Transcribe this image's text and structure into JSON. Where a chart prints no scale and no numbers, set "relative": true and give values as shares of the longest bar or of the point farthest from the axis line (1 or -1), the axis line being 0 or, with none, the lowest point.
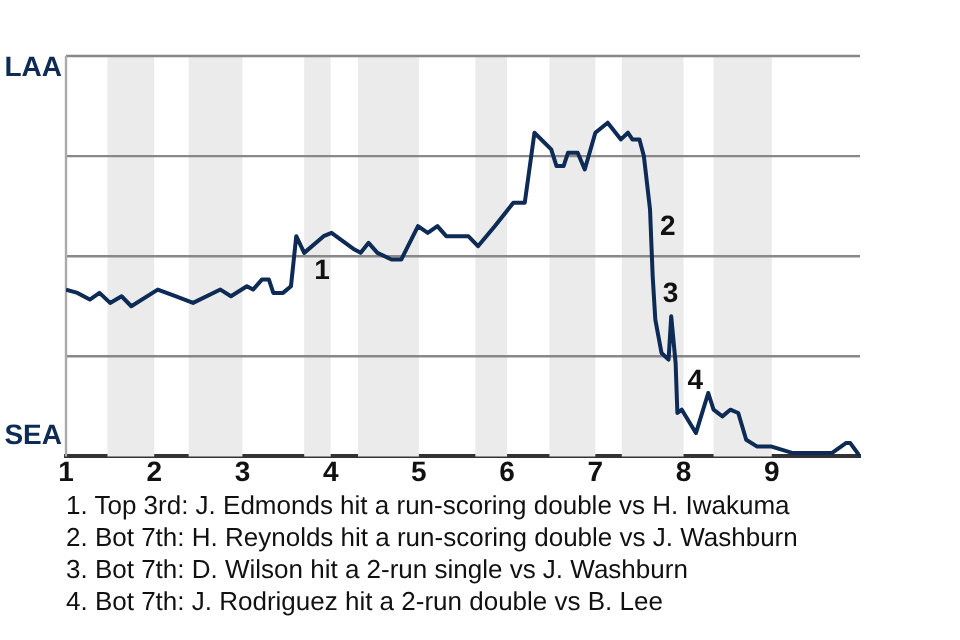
{
  "chart_data": {
    "type": "line",
    "color": "#0d2b55",
    "marker": "none",
    "grid": "y",
    "legend": false,
    "relative": true,
    "x": [
      1.0,
      1.13,
      1.27,
      1.38,
      1.5,
      1.63,
      1.74,
      2.04,
      2.24,
      2.44,
      2.75,
      2.87,
      3.05,
      3.12,
      3.22,
      3.3,
      3.35,
      3.46,
      3.55,
      3.61,
      3.7,
      3.92,
      4.01,
      4.27,
      4.34,
      4.43,
      4.53,
      4.69,
      4.8,
      4.99,
      5.1,
      5.21,
      5.31,
      5.56,
      5.67,
      5.86,
      6.07,
      6.2,
      6.31,
      6.5,
      6.56,
      6.64,
      6.69,
      6.8,
      6.88,
      7.0,
      7.14,
      7.29,
      7.37,
      7.42,
      7.5,
      7.55,
      7.62,
      7.65,
      7.68,
      7.75,
      7.83,
      7.86,
      7.91,
      7.93,
      7.98,
      8.14,
      8.28,
      8.34,
      8.44,
      8.53,
      8.62,
      8.71,
      8.83,
      8.99,
      9.24,
      9.36,
      9.68,
      9.84,
      9.89,
      10.0
    ],
    "values": [
      0.5,
      0.49,
      0.47,
      0.49,
      0.46,
      0.48,
      0.45,
      0.5,
      0.48,
      0.46,
      0.5,
      0.48,
      0.51,
      0.5,
      0.53,
      0.53,
      0.49,
      0.49,
      0.51,
      0.66,
      0.61,
      0.66,
      0.67,
      0.62,
      0.61,
      0.64,
      0.61,
      0.59,
      0.59,
      0.69,
      0.67,
      0.69,
      0.66,
      0.66,
      0.63,
      0.69,
      0.76,
      0.76,
      0.97,
      0.92,
      0.87,
      0.87,
      0.91,
      0.91,
      0.86,
      0.97,
      1,
      0.95,
      0.97,
      0.95,
      0.95,
      0.9,
      0.74,
      0.54,
      0.41,
      0.31,
      0.29,
      0.42,
      0.28,
      0.13,
      0.14,
      0.07,
      0.19,
      0.14,
      0.12,
      0.14,
      0.13,
      0.05,
      0.03,
      0.03,
      0.01,
      0.01,
      0.01,
      0.04,
      0.04,
      0
    ],
    "xlim": [
      1,
      10
    ],
    "xticks": [
      1,
      2,
      3,
      4,
      5,
      6,
      7,
      8,
      9
    ],
    "bands": [
      {
        "axis": "x",
        "from": 1.47,
        "to": 2,
        "color": "#ebebeb"
      },
      {
        "axis": "x",
        "from": 2.39,
        "to": 3,
        "color": "#ebebeb"
      },
      {
        "axis": "x",
        "from": 3.7,
        "to": 4,
        "color": "#ebebeb"
      },
      {
        "axis": "x",
        "from": 4.31,
        "to": 5,
        "color": "#ebebeb"
      },
      {
        "axis": "x",
        "from": 5.64,
        "to": 6,
        "color": "#ebebeb"
      },
      {
        "axis": "x",
        "from": 6.48,
        "to": 7,
        "color": "#ebebeb"
      },
      {
        "axis": "x",
        "from": 7.3,
        "to": 8,
        "color": "#ebebeb"
      },
      {
        "axis": "x",
        "from": 8.34,
        "to": 9,
        "color": "#ebebeb"
      }
    ],
    "annotations": [
      "LAA",
      "SEA",
      {
        "text": "1",
        "x": 3.7,
        "y": 0.61
      },
      {
        "text": "2",
        "x": 7.62,
        "y": 0.74
      },
      {
        "text": "3",
        "x": 7.65,
        "y": 0.54
      },
      {
        "text": "4",
        "x": 7.93,
        "y": 0.28
      },
      "1. Top 3rd: J. Edmonds hit a run-scoring double vs H. Iwakuma",
      "2. Bot 7th: H. Reynolds hit a run-scoring double vs J. Washburn",
      "3. Bot 7th: D. Wilson hit a 2-run single vs J. Washburn",
      "4. Bot 7th: J. Rodriguez hit a 2-run double vs B. Lee"
    ]
  }
}
